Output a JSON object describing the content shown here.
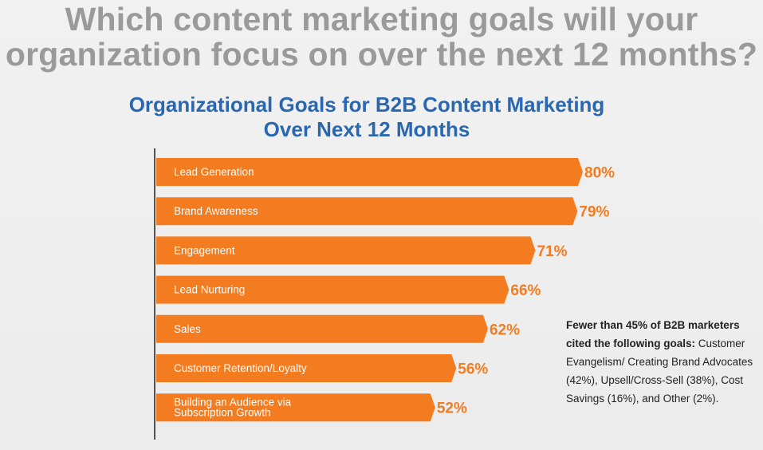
{
  "headline": {
    "line1": "Which content marketing goals will your",
    "line2": "organization focus on over the next 12 months?"
  },
  "chart_data": {
    "type": "bar",
    "orientation": "horizontal",
    "title_line1": "Organizational Goals for B2B Content Marketing",
    "title_line2": "Over Next 12 Months",
    "categories": [
      [
        "Lead Generation"
      ],
      [
        "Brand Awareness"
      ],
      [
        "Engagement"
      ],
      [
        "Lead Nurturing"
      ],
      [
        "Sales"
      ],
      [
        "Customer Retention/Loyalty"
      ],
      [
        "Building an Audience via",
        "Subscription Growth"
      ]
    ],
    "values": [
      80,
      79,
      71,
      66,
      62,
      56,
      52
    ],
    "value_labels": [
      "80%",
      "79%",
      "71%",
      "66%",
      "62%",
      "56%",
      "52%"
    ],
    "unit": "%",
    "xlim": [
      0,
      80
    ],
    "bar_color": "#f47c20",
    "label_color": "#f47c20",
    "grid": false
  },
  "note": {
    "bold": "Fewer than 45% of B2B marketers cited the following goals:",
    "text": " Customer Evangelism/ Creating Brand Advocates (42%), Upsell/Cross-Sell (38%), Cost Savings (16%), and Other (2%)."
  }
}
